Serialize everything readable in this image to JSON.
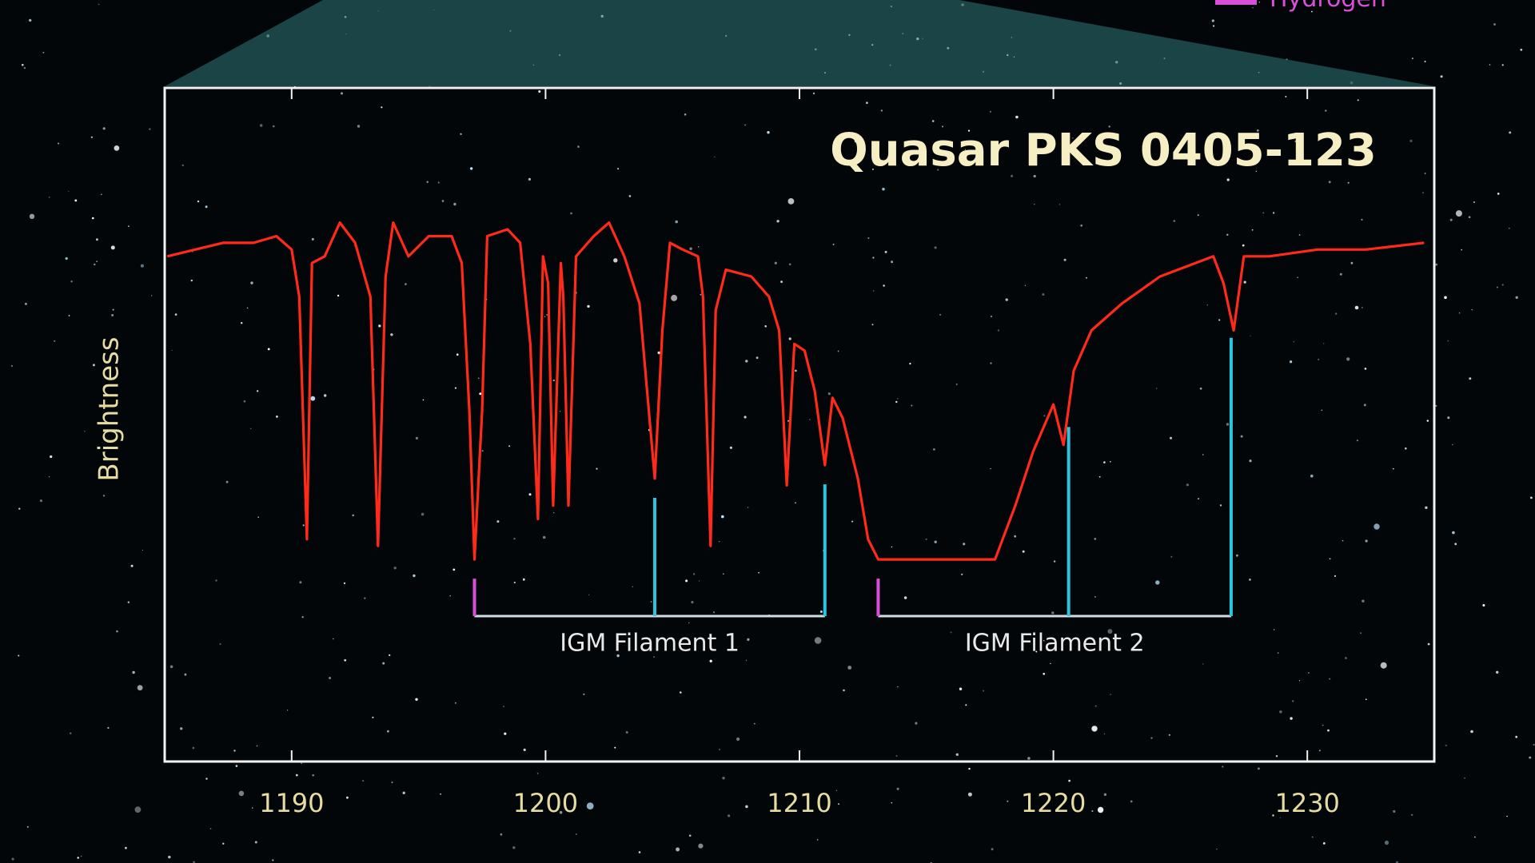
{
  "chart_data": {
    "type": "line",
    "title": "Quasar PKS 0405-123",
    "ylabel": "Brightness",
    "color": "#ff2a1a",
    "x": [
      1185.1,
      1186.2,
      1187.3,
      1188.5,
      1189.4,
      1190.0,
      1190.3,
      1190.6,
      1190.8,
      1191.3,
      1191.9,
      1192.5,
      1193.1,
      1193.4,
      1193.7,
      1194.0,
      1194.6,
      1195.4,
      1196.3,
      1196.7,
      1197.0,
      1197.2,
      1197.5,
      1197.7,
      1198.5,
      1199.0,
      1199.4,
      1199.7,
      1199.9,
      1200.1,
      1200.3,
      1200.6,
      1200.7,
      1200.9,
      1201.2,
      1201.9,
      1202.5,
      1203.1,
      1203.7,
      1204.0,
      1204.3,
      1204.6,
      1204.9,
      1205.4,
      1206.0,
      1206.2,
      1206.5,
      1206.7,
      1207.1,
      1208.1,
      1208.8,
      1209.2,
      1209.5,
      1209.8,
      1210.2,
      1210.6,
      1211.0,
      1211.3,
      1211.7,
      1212.3,
      1212.7,
      1213.1,
      1213.7,
      1214.6,
      1217.3,
      1217.7,
      1218.5,
      1219.2,
      1220.0,
      1220.4,
      1220.8,
      1221.5,
      1222.7,
      1224.2,
      1226.3,
      1226.7,
      1227.1,
      1227.5,
      1228.5,
      1230.4,
      1232.3,
      1234.6
    ],
    "values": [
      0.75,
      0.76,
      0.77,
      0.77,
      0.78,
      0.76,
      0.69,
      0.33,
      0.74,
      0.75,
      0.8,
      0.77,
      0.69,
      0.32,
      0.72,
      0.8,
      0.75,
      0.78,
      0.78,
      0.74,
      0.52,
      0.3,
      0.52,
      0.78,
      0.79,
      0.77,
      0.62,
      0.36,
      0.75,
      0.71,
      0.38,
      0.74,
      0.69,
      0.38,
      0.75,
      0.78,
      0.8,
      0.75,
      0.68,
      0.55,
      0.42,
      0.64,
      0.77,
      0.76,
      0.75,
      0.69,
      0.32,
      0.67,
      0.73,
      0.72,
      0.69,
      0.64,
      0.41,
      0.62,
      0.61,
      0.55,
      0.44,
      0.54,
      0.51,
      0.42,
      0.33,
      0.3,
      0.3,
      0.3,
      0.3,
      0.3,
      0.38,
      0.46,
      0.53,
      0.47,
      0.58,
      0.64,
      0.68,
      0.72,
      0.75,
      0.71,
      0.64,
      0.75,
      0.75,
      0.76,
      0.76,
      0.77
    ],
    "xlim": [
      1185,
      1235
    ],
    "ylim": [
      0,
      1
    ],
    "xticks": [
      1190,
      1200,
      1210,
      1220,
      1230
    ],
    "filaments": [
      {
        "label": "IGM Filament 1",
        "lines": [
          {
            "x": 1197.2,
            "color": "#d94fd9"
          },
          {
            "x": 1204.3,
            "color": "#2ec4e0"
          },
          {
            "x": 1211.0,
            "color": "#2ec4e0"
          }
        ]
      },
      {
        "label": "IGM Filament 2",
        "lines": [
          {
            "x": 1213.1,
            "color": "#d94fd9"
          },
          {
            "x": 1220.6,
            "color": "#2ec4e0"
          },
          {
            "x": 1227.0,
            "color": "#2ec4e0"
          }
        ]
      }
    ],
    "legend": [
      {
        "label": "Hydrogen",
        "color": "#d94fd9"
      }
    ]
  }
}
